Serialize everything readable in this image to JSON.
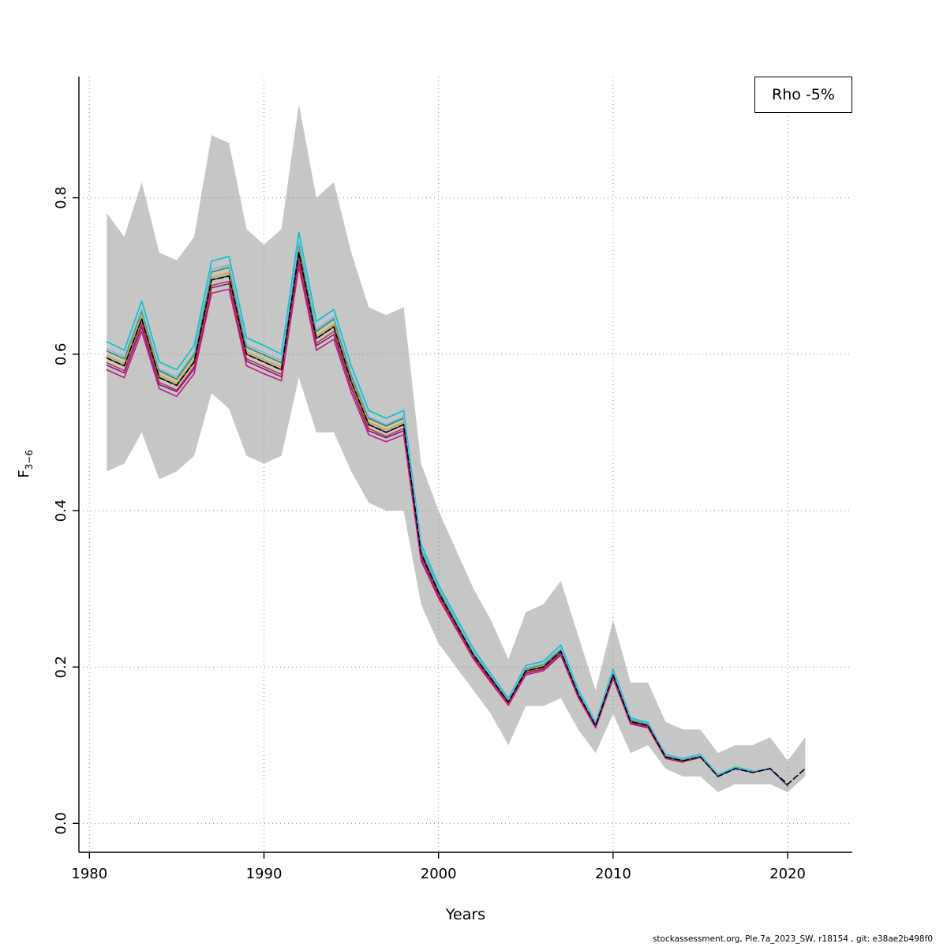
{
  "legend": {
    "label": "Rho -5%"
  },
  "axes": {
    "xlabel": "Years",
    "ylabel_main": "F",
    "ylabel_sub": "3−6"
  },
  "footer": {
    "text": "stockassessment.org, Ple.7a_2023_SW, r18154 , git: e38ae2b498f0"
  },
  "chart_data": {
    "type": "line",
    "title": "",
    "xlabel": "Years",
    "ylabel": "F3-6",
    "legend_label": "Rho -5%",
    "legend_position": "topright",
    "grid": "dotted",
    "xlim": [
      1979.4,
      2023.7
    ],
    "ylim": [
      -0.037,
      0.955
    ],
    "x_ticks": [
      1980,
      1990,
      2000,
      2010,
      2020
    ],
    "y_ticks": [
      0.0,
      0.2,
      0.4,
      0.6,
      0.8
    ],
    "band": {
      "name": "confidence-band",
      "color": "#c6c6c6",
      "start_year": 1981,
      "upper": [
        0.78,
        0.75,
        0.82,
        0.73,
        0.72,
        0.75,
        0.88,
        0.87,
        0.76,
        0.74,
        0.76,
        0.92,
        0.8,
        0.82,
        0.73,
        0.66,
        0.65,
        0.66,
        0.46,
        0.4,
        0.35,
        0.3,
        0.26,
        0.21,
        0.27,
        0.28,
        0.31,
        0.24,
        0.17,
        0.26,
        0.18,
        0.18,
        0.13,
        0.12,
        0.12,
        0.09,
        0.1,
        0.1,
        0.11,
        0.08,
        0.11
      ],
      "lower": [
        0.45,
        0.46,
        0.5,
        0.44,
        0.45,
        0.47,
        0.55,
        0.53,
        0.47,
        0.46,
        0.47,
        0.57,
        0.5,
        0.5,
        0.45,
        0.41,
        0.4,
        0.4,
        0.28,
        0.23,
        0.2,
        0.17,
        0.14,
        0.1,
        0.15,
        0.15,
        0.16,
        0.12,
        0.09,
        0.14,
        0.09,
        0.1,
        0.07,
        0.06,
        0.06,
        0.04,
        0.05,
        0.05,
        0.05,
        0.04,
        0.06
      ]
    },
    "series": [
      {
        "name": "retro-peel-2013",
        "color": "#68228B",
        "start_year": 1981,
        "values": [
          0.586,
          0.576,
          0.635,
          0.561,
          0.552,
          0.581,
          0.685,
          0.69,
          0.591,
          0.581,
          0.571,
          0.719,
          0.611,
          0.625,
          0.557,
          0.502,
          0.493,
          0.502,
          0.34,
          0.291,
          0.251,
          0.212,
          0.182,
          0.153,
          0.192,
          0.197,
          0.217,
          0.163,
          0.123,
          0.187,
          0.128,
          0.123,
          0.084
        ]
      },
      {
        "name": "retro-peel-2014",
        "color": "#C71585",
        "start_year": 1981,
        "values": [
          0.58,
          0.57,
          0.629,
          0.556,
          0.546,
          0.575,
          0.678,
          0.683,
          0.585,
          0.575,
          0.566,
          0.712,
          0.605,
          0.619,
          0.551,
          0.497,
          0.488,
          0.497,
          0.336,
          0.288,
          0.249,
          0.21,
          0.18,
          0.151,
          0.19,
          0.195,
          0.215,
          0.161,
          0.122,
          0.185,
          0.127,
          0.122,
          0.083,
          0.078
        ]
      },
      {
        "name": "retro-peel-2015",
        "color": "#CD3333",
        "start_year": 1981,
        "values": [
          0.589,
          0.579,
          0.639,
          0.564,
          0.554,
          0.584,
          0.688,
          0.693,
          0.594,
          0.584,
          0.574,
          0.723,
          0.614,
          0.629,
          0.559,
          0.505,
          0.495,
          0.505,
          0.342,
          0.292,
          0.252,
          0.213,
          0.183,
          0.153,
          0.193,
          0.198,
          0.218,
          0.163,
          0.124,
          0.188,
          0.129,
          0.124,
          0.084,
          0.079,
          0.084
        ]
      },
      {
        "name": "retro-peel-2016",
        "color": "#DAA520",
        "start_year": 1981,
        "values": [
          0.598,
          0.588,
          0.648,
          0.573,
          0.563,
          0.593,
          0.698,
          0.704,
          0.603,
          0.593,
          0.583,
          0.734,
          0.623,
          0.638,
          0.568,
          0.513,
          0.503,
          0.513,
          0.347,
          0.297,
          0.256,
          0.216,
          0.186,
          0.156,
          0.196,
          0.201,
          0.221,
          0.166,
          0.126,
          0.191,
          0.131,
          0.126,
          0.085,
          0.08,
          0.085,
          0.06
        ]
      },
      {
        "name": "retro-peel-2017",
        "color": "#2E8B57",
        "start_year": 1981,
        "values": [
          0.604,
          0.594,
          0.655,
          0.579,
          0.568,
          0.599,
          0.705,
          0.711,
          0.609,
          0.599,
          0.589,
          0.741,
          0.629,
          0.645,
          0.573,
          0.518,
          0.508,
          0.518,
          0.35,
          0.299,
          0.259,
          0.218,
          0.188,
          0.157,
          0.198,
          0.203,
          0.223,
          0.167,
          0.127,
          0.193,
          0.132,
          0.127,
          0.086,
          0.081,
          0.086,
          0.061,
          0.071
        ]
      },
      {
        "name": "retro-peel-2018",
        "color": "#00C5CD",
        "start_year": 1981,
        "values": [
          0.616,
          0.605,
          0.668,
          0.59,
          0.58,
          0.611,
          0.719,
          0.725,
          0.621,
          0.611,
          0.6,
          0.756,
          0.642,
          0.657,
          0.585,
          0.528,
          0.518,
          0.528,
          0.357,
          0.305,
          0.264,
          0.223,
          0.191,
          0.16,
          0.202,
          0.207,
          0.228,
          0.171,
          0.129,
          0.197,
          0.135,
          0.129,
          0.088,
          0.083,
          0.088,
          0.062,
          0.072,
          0.067
        ]
      },
      {
        "name": "retro-peel-2019",
        "color": "#7EB6E0",
        "start_year": 1981,
        "values": [
          0.607,
          0.597,
          0.658,
          0.581,
          0.571,
          0.602,
          0.709,
          0.714,
          0.612,
          0.602,
          0.592,
          0.745,
          0.632,
          0.648,
          0.576,
          0.52,
          0.51,
          0.52,
          0.352,
          0.301,
          0.26,
          0.219,
          0.189,
          0.158,
          0.199,
          0.204,
          0.224,
          0.168,
          0.128,
          0.194,
          0.133,
          0.128,
          0.087,
          0.082,
          0.087,
          0.061,
          0.071,
          0.066,
          0.071
        ]
      },
      {
        "name": "retro-peel-2020",
        "color": "#27408B",
        "start_year": 1981,
        "values": [
          0.595,
          0.585,
          0.645,
          0.57,
          0.56,
          0.59,
          0.695,
          0.7,
          0.6,
          0.59,
          0.58,
          0.73,
          0.62,
          0.635,
          0.565,
          0.51,
          0.5,
          0.51,
          0.345,
          0.295,
          0.255,
          0.215,
          0.185,
          0.155,
          0.195,
          0.2,
          0.22,
          0.165,
          0.125,
          0.19,
          0.13,
          0.125,
          0.085,
          0.08,
          0.085,
          0.06,
          0.07,
          0.065,
          0.07,
          0.048
        ]
      },
      {
        "name": "final-assessment-2023",
        "color": "#000000",
        "dash": true,
        "start_year": 1981,
        "values": [
          0.595,
          0.585,
          0.645,
          0.57,
          0.56,
          0.59,
          0.695,
          0.7,
          0.6,
          0.59,
          0.58,
          0.73,
          0.62,
          0.635,
          0.565,
          0.51,
          0.5,
          0.51,
          0.345,
          0.295,
          0.255,
          0.215,
          0.185,
          0.155,
          0.195,
          0.2,
          0.22,
          0.165,
          0.125,
          0.19,
          0.13,
          0.125,
          0.085,
          0.08,
          0.085,
          0.06,
          0.07,
          0.065,
          0.07,
          0.05,
          0.07
        ]
      }
    ]
  }
}
